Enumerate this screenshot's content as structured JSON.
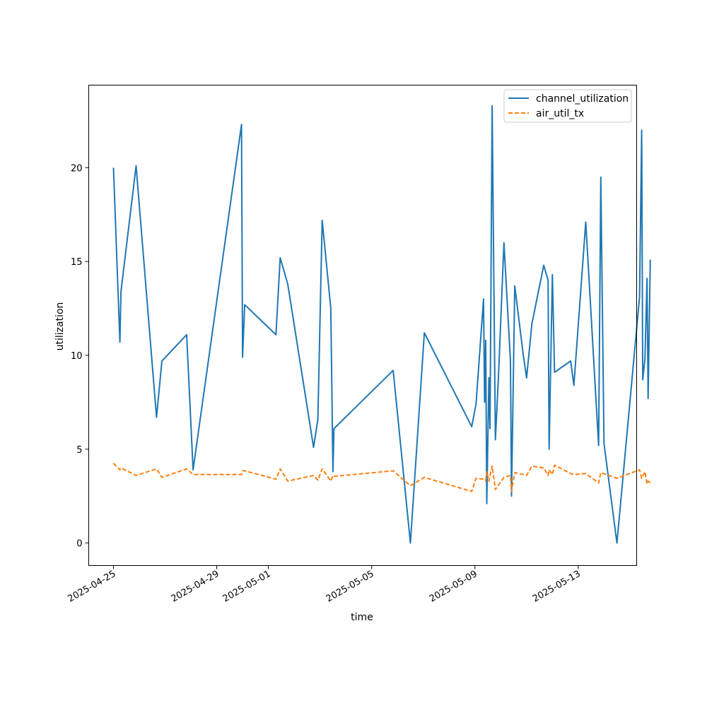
{
  "chart_data": {
    "type": "line",
    "xlabel": "time",
    "ylabel": "utilization",
    "x_ticks": [
      "2025-04-25",
      "2025-04-29",
      "2025-05-01",
      "2025-05-05",
      "2025-05-09",
      "2025-05-13"
    ],
    "y_ticks": [
      "0",
      "5",
      "10",
      "15",
      "20"
    ],
    "xlim": [
      "2025-04-24T01:00",
      "2025-05-15T06:20"
    ],
    "ylim": [
      -1.2,
      24.4
    ],
    "grid": false,
    "legend_position": "top-right",
    "series": [
      {
        "name": "channel_utilization",
        "color": "#1f77b4",
        "style": "solid",
        "points": [
          [
            "2025-04-25T00:00",
            20.0
          ],
          [
            "2025-04-25T06:00",
            10.7
          ],
          [
            "2025-04-25T07:00",
            13.4
          ],
          [
            "2025-04-25T21:00",
            20.1
          ],
          [
            "2025-04-26T16:00",
            6.7
          ],
          [
            "2025-04-26T21:00",
            9.7
          ],
          [
            "2025-04-27T20:00",
            11.1
          ],
          [
            "2025-04-28T02:00",
            3.9
          ],
          [
            "2025-04-29T23:00",
            22.3
          ],
          [
            "2025-04-30T00:00",
            9.9
          ],
          [
            "2025-04-30T02:00",
            12.7
          ],
          [
            "2025-05-01T07:00",
            11.1
          ],
          [
            "2025-05-01T11:00",
            15.2
          ],
          [
            "2025-05-01T18:00",
            13.8
          ],
          [
            "2025-05-02T18:00",
            5.1
          ],
          [
            "2025-05-02T22:00",
            6.6
          ],
          [
            "2025-05-03T02:00",
            17.2
          ],
          [
            "2025-05-03T10:00",
            12.5
          ],
          [
            "2025-05-03T12:00",
            3.8
          ],
          [
            "2025-05-03T13:00",
            6.1
          ],
          [
            "2025-05-05T20:00",
            9.2
          ],
          [
            "2025-05-06T12:00",
            0.0
          ],
          [
            "2025-05-07T01:00",
            11.2
          ],
          [
            "2025-05-08T21:00",
            6.2
          ],
          [
            "2025-05-09T01:00",
            7.4
          ],
          [
            "2025-05-09T08:00",
            13.0
          ],
          [
            "2025-05-09T09:00",
            7.5
          ],
          [
            "2025-05-09T10:00",
            10.8
          ],
          [
            "2025-05-09T11:00",
            2.1
          ],
          [
            "2025-05-09T13:00",
            8.8
          ],
          [
            "2025-05-09T14:00",
            6.1
          ],
          [
            "2025-05-09T16:00",
            23.3
          ],
          [
            "2025-05-09T19:00",
            5.5
          ],
          [
            "2025-05-09T22:00",
            9.0
          ],
          [
            "2025-05-10T03:00",
            16.0
          ],
          [
            "2025-05-10T09:00",
            9.7
          ],
          [
            "2025-05-10T10:00",
            2.5
          ],
          [
            "2025-05-10T13:00",
            13.7
          ],
          [
            "2025-05-10T21:00",
            10.0
          ],
          [
            "2025-05-11T00:00",
            8.8
          ],
          [
            "2025-05-11T05:00",
            11.7
          ],
          [
            "2025-05-11T16:00",
            14.8
          ],
          [
            "2025-05-11T20:00",
            14.0
          ],
          [
            "2025-05-11T21:00",
            5.0
          ],
          [
            "2025-05-12T00:00",
            14.3
          ],
          [
            "2025-05-12T02:00",
            9.1
          ],
          [
            "2025-05-12T17:00",
            9.7
          ],
          [
            "2025-05-12T20:00",
            8.4
          ],
          [
            "2025-05-13T07:00",
            17.1
          ],
          [
            "2025-05-13T19:00",
            5.2
          ],
          [
            "2025-05-13T21:00",
            19.5
          ],
          [
            "2025-05-14T00:00",
            5.3
          ],
          [
            "2025-05-14T12:00",
            0.0
          ],
          [
            "2025-05-15T09:00",
            13.1
          ],
          [
            "2025-05-15T11:00",
            22.0
          ],
          [
            "2025-05-15T12:00",
            8.7
          ],
          [
            "2025-05-15T14:00",
            9.8
          ],
          [
            "2025-05-15T16:00",
            14.1
          ],
          [
            "2025-05-15T17:00",
            7.7
          ],
          [
            "2025-05-15T19:00",
            15.1
          ]
        ]
      },
      {
        "name": "air_util_tx",
        "color": "#ff7f0e",
        "style": "dashed",
        "points": [
          [
            "2025-04-25T00:00",
            4.25
          ],
          [
            "2025-04-25T06:00",
            3.9
          ],
          [
            "2025-04-25T07:00",
            4.0
          ],
          [
            "2025-04-25T21:00",
            3.6
          ],
          [
            "2025-04-26T16:00",
            3.95
          ],
          [
            "2025-04-26T21:00",
            3.5
          ],
          [
            "2025-04-27T20:00",
            3.95
          ],
          [
            "2025-04-28T02:00",
            3.65
          ],
          [
            "2025-04-29T23:00",
            3.65
          ],
          [
            "2025-04-30T00:00",
            3.85
          ],
          [
            "2025-04-30T02:00",
            3.85
          ],
          [
            "2025-05-01T07:00",
            3.4
          ],
          [
            "2025-05-01T11:00",
            3.95
          ],
          [
            "2025-05-01T18:00",
            3.3
          ],
          [
            "2025-05-02T18:00",
            3.6
          ],
          [
            "2025-05-02T22:00",
            3.35
          ],
          [
            "2025-05-03T02:00",
            3.95
          ],
          [
            "2025-05-03T10:00",
            3.3
          ],
          [
            "2025-05-03T12:00",
            3.6
          ],
          [
            "2025-05-03T13:00",
            3.55
          ],
          [
            "2025-05-05T20:00",
            3.85
          ],
          [
            "2025-05-06T12:00",
            3.05
          ],
          [
            "2025-05-07T01:00",
            3.5
          ],
          [
            "2025-05-08T21:00",
            2.75
          ],
          [
            "2025-05-09T01:00",
            3.45
          ],
          [
            "2025-05-09T08:00",
            3.4
          ],
          [
            "2025-05-09T10:00",
            3.3
          ],
          [
            "2025-05-09T11:00",
            3.8
          ],
          [
            "2025-05-09T13:00",
            3.3
          ],
          [
            "2025-05-09T16:00",
            4.1
          ],
          [
            "2025-05-09T19:00",
            2.85
          ],
          [
            "2025-05-10T03:00",
            3.5
          ],
          [
            "2025-05-10T09:00",
            3.6
          ],
          [
            "2025-05-10T10:00",
            2.75
          ],
          [
            "2025-05-10T13:00",
            3.75
          ],
          [
            "2025-05-10T21:00",
            3.65
          ],
          [
            "2025-05-11T00:00",
            3.6
          ],
          [
            "2025-05-11T05:00",
            4.1
          ],
          [
            "2025-05-11T16:00",
            4.0
          ],
          [
            "2025-05-11T20:00",
            3.6
          ],
          [
            "2025-05-11T21:00",
            3.9
          ],
          [
            "2025-05-12T00:00",
            3.65
          ],
          [
            "2025-05-12T02:00",
            4.15
          ],
          [
            "2025-05-12T17:00",
            3.7
          ],
          [
            "2025-05-12T20:00",
            3.65
          ],
          [
            "2025-05-13T07:00",
            3.7
          ],
          [
            "2025-05-13T19:00",
            3.2
          ],
          [
            "2025-05-13T21:00",
            3.75
          ],
          [
            "2025-05-14T12:00",
            3.45
          ],
          [
            "2025-05-15T09:00",
            3.9
          ],
          [
            "2025-05-15T11:00",
            3.45
          ],
          [
            "2025-05-15T14:00",
            3.8
          ],
          [
            "2025-05-15T16:00",
            3.15
          ],
          [
            "2025-05-15T17:00",
            3.3
          ],
          [
            "2025-05-15T19:00",
            3.2
          ]
        ]
      }
    ]
  }
}
